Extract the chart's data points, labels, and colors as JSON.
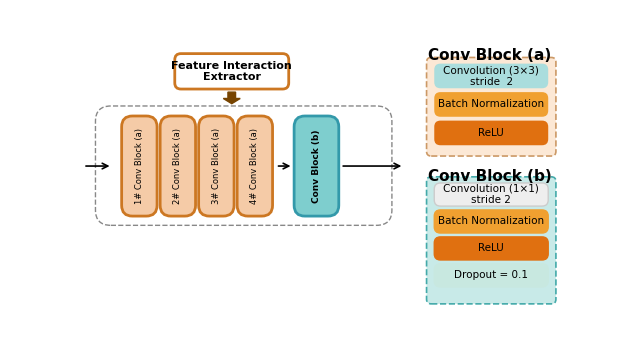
{
  "bg_color": "#ffffff",
  "title_a": "Conv Block (a)",
  "title_b": "Conv Block (b)",
  "fie_label": "Feature Interaction\nExtractor",
  "conv_blocks_a": [
    "1# Conv Block (a)",
    "2# Conv Block (a)",
    "3# Conv Block (a)",
    "4# Conv Block (a)"
  ],
  "conv_block_b": "Conv Block (b)",
  "block_a_color_fill": "#f5cba7",
  "block_a_color_edge": "#cc7722",
  "block_b_color_fill": "#7ecece",
  "block_b_color_edge": "#3399aa",
  "fie_fill": "#ffffff",
  "fie_edge": "#cc7722",
  "outer_fill": "#ffffff",
  "outer_edge": "#888888",
  "right_outer_a_fill": "#fce8d5",
  "right_outer_b_fill": "#c8eae8",
  "right_outer_edge_a": "#cc9966",
  "right_outer_edge_b": "#44aaaa",
  "conv_a_block_items": [
    "Convolution (3×3)\nstride  2",
    "Batch Normalization",
    "ReLU"
  ],
  "conv_a_block_colors": [
    "#aadddd",
    "#f0a030",
    "#e07010"
  ],
  "conv_a_block_edges": [
    "#aadddd",
    "#f0a030",
    "#e07010"
  ],
  "conv_b_block_items": [
    "Convolution (1×1)\nstride 2",
    "Batch Normalization",
    "ReLU",
    "Dropout = 0.1"
  ],
  "conv_b_block_colors": [
    "#eeeeee",
    "#f0a030",
    "#e07010",
    "#c8e8e0"
  ],
  "conv_b_block_edges": [
    "#cccccc",
    "#f0a030",
    "#e07010",
    "#c8e8e0"
  ]
}
